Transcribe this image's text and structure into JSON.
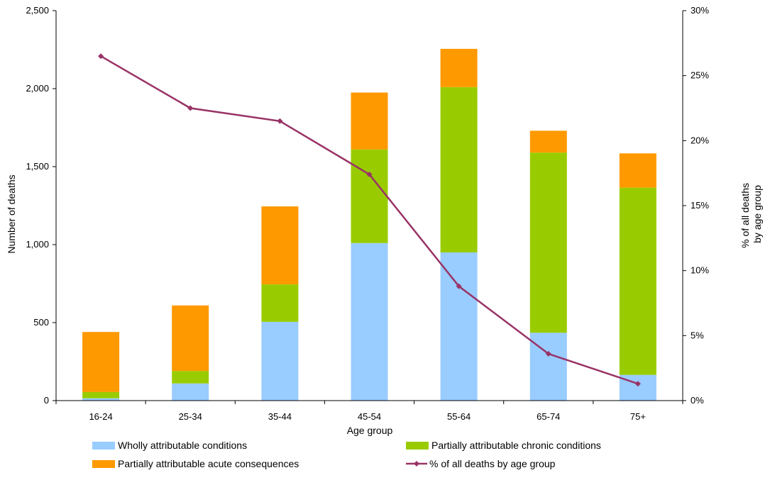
{
  "chart_data": {
    "type": "bar",
    "stacked": true,
    "categories": [
      "16-24",
      "25-34",
      "35-44",
      "45-54",
      "55-64",
      "65-74",
      "75+"
    ],
    "series": [
      {
        "name": "Wholly attributable conditions",
        "type": "bar",
        "axis": "left",
        "color": "#99ccff",
        "values": [
          15,
          110,
          505,
          1010,
          950,
          435,
          165
        ]
      },
      {
        "name": "Partially attributable chronic conditions",
        "type": "bar",
        "axis": "left",
        "color": "#99cc00",
        "values": [
          40,
          80,
          240,
          600,
          1060,
          1155,
          1200
        ]
      },
      {
        "name": "Partially attributable acute consequences",
        "type": "bar",
        "axis": "left",
        "color": "#ff9900",
        "values": [
          385,
          420,
          500,
          365,
          245,
          140,
          220
        ]
      },
      {
        "name": "% of all deaths by age group",
        "type": "line",
        "axis": "right",
        "color": "#993366",
        "values": [
          26.5,
          22.5,
          21.5,
          17.4,
          8.8,
          3.6,
          1.3
        ]
      }
    ],
    "xlabel": "Age group",
    "ylabel": "Number of deaths",
    "y2label": "% of all deaths by age group",
    "ylim": [
      0,
      2500
    ],
    "y2lim": [
      0,
      30
    ],
    "yticks": [
      "0",
      "500",
      "1,000",
      "1,500",
      "2,000",
      "2,500"
    ],
    "y2ticks": [
      "0%",
      "5%",
      "10%",
      "15%",
      "20%",
      "25%",
      "30%"
    ],
    "grid": false,
    "legend_position": "bottom"
  }
}
